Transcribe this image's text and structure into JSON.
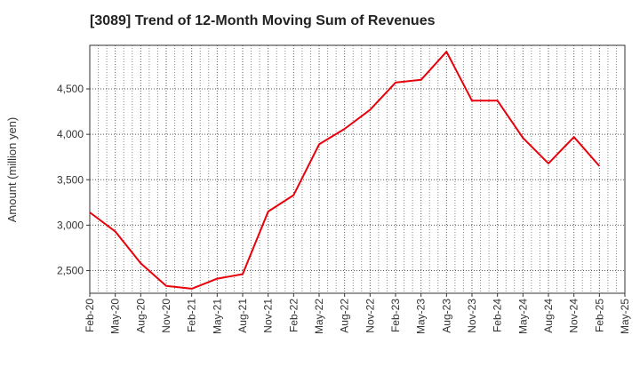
{
  "chart_data": {
    "type": "line",
    "title": "[3089]  Trend of 12-Month Moving Sum of Revenues",
    "xlabel": "",
    "ylabel": "Amount (million yen)",
    "x_ticks": [
      "Feb-20",
      "May-20",
      "Aug-20",
      "Nov-20",
      "Feb-21",
      "May-21",
      "Aug-21",
      "Nov-21",
      "Feb-22",
      "May-22",
      "Aug-22",
      "Nov-22",
      "Feb-23",
      "May-23",
      "Aug-23",
      "Nov-23",
      "Feb-24",
      "May-24",
      "Aug-24",
      "Nov-24",
      "Feb-25",
      "May-25"
    ],
    "y_ticks": [
      2500,
      3000,
      3500,
      4000,
      4500
    ],
    "y_tick_labels": [
      "2,500",
      "3,000",
      "3,500",
      "4,000",
      "4,500"
    ],
    "ylim": [
      2250,
      4980
    ],
    "grid": true,
    "series": [
      {
        "color": "#e8000b",
        "x": [
          "Feb-20",
          "May-20",
          "Aug-20",
          "Nov-20",
          "Feb-21",
          "May-21",
          "Aug-21",
          "Nov-21",
          "Feb-22",
          "May-22",
          "Aug-22",
          "Nov-22",
          "Feb-23",
          "May-23",
          "Aug-23",
          "Nov-23",
          "Feb-24",
          "May-24",
          "Aug-24",
          "Nov-24",
          "Feb-25"
        ],
        "values": [
          3140,
          2930,
          2580,
          2330,
          2300,
          2410,
          2460,
          3150,
          3330,
          3890,
          4060,
          4270,
          4570,
          4600,
          4910,
          4370,
          4370,
          3960,
          3680,
          3970,
          3650
        ]
      }
    ]
  }
}
